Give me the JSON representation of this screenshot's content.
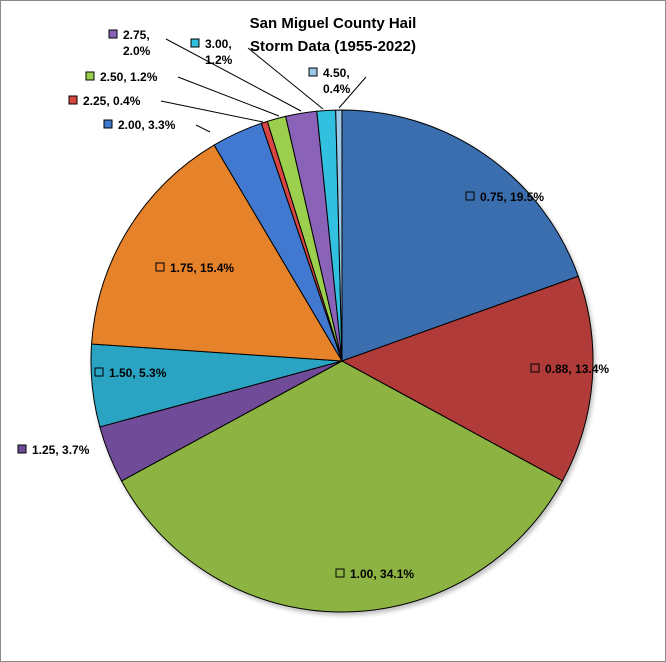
{
  "chart_data": {
    "type": "pie",
    "title_lines": [
      "San Miguel County Hail",
      "Storm Data (1955-2022)"
    ],
    "slices": [
      {
        "category": "0.75",
        "percent": 19.5,
        "color": "#3a6eae",
        "label_lines": [
          "0.75, 19.5%"
        ]
      },
      {
        "category": "0.88",
        "percent": 13.4,
        "color": "#b13b38",
        "label_lines": [
          "0.88, 13.4%"
        ]
      },
      {
        "category": "1.00",
        "percent": 34.1,
        "color": "#8db443",
        "label_lines": [
          "1.00, 34.1%"
        ]
      },
      {
        "category": "1.25",
        "percent": 3.7,
        "color": "#6f4c97",
        "label_lines": [
          "1.25, 3.7%"
        ]
      },
      {
        "category": "1.50",
        "percent": 5.3,
        "color": "#2aa4c2",
        "label_lines": [
          "1.50, 5.3%"
        ]
      },
      {
        "category": "1.75",
        "percent": 15.4,
        "color": "#e6822b",
        "label_lines": [
          "1.75, 15.4%"
        ]
      },
      {
        "category": "2.00",
        "percent": 3.3,
        "color": "#3f79cf",
        "label_lines": [
          "2.00, 3.3%"
        ]
      },
      {
        "category": "2.25",
        "percent": 0.4,
        "color": "#d9443f",
        "label_lines": [
          "2.25, 0.4%"
        ]
      },
      {
        "category": "2.50",
        "percent": 1.2,
        "color": "#9ccf4e",
        "label_lines": [
          "2.50, 1.2%"
        ]
      },
      {
        "category": "2.75",
        "percent": 2.0,
        "color": "#8a63b8",
        "label_lines": [
          "2.75,",
          "2.0%"
        ]
      },
      {
        "category": "3.00",
        "percent": 1.2,
        "color": "#30c0e0",
        "label_lines": [
          "3.00,",
          "1.2%"
        ]
      },
      {
        "category": "4.50",
        "percent": 0.4,
        "color": "#9dc8e6",
        "label_lines": [
          "4.50,",
          "0.4%"
        ]
      }
    ],
    "legend": "none",
    "data_labels": "category, percent"
  }
}
